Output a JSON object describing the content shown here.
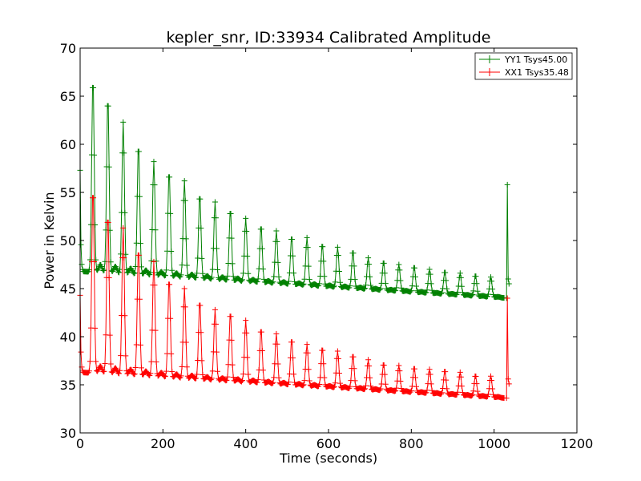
{
  "chart_data": {
    "type": "line",
    "title": "kepler_snr, ID:33934 Calibrated Amplitude",
    "xlabel": "Time (seconds)",
    "ylabel": "Power in Kelvin",
    "xlim": [
      0,
      1200
    ],
    "ylim": [
      30,
      70
    ],
    "xticks": [
      0,
      200,
      400,
      600,
      800,
      1000,
      1200
    ],
    "yticks": [
      30,
      35,
      40,
      45,
      50,
      55,
      60,
      65,
      70
    ],
    "grid": false,
    "legend_position": "top-right",
    "marker": "+",
    "sample_spacing_seconds": 2,
    "series": [
      {
        "name": "YY1 Tsys45.00",
        "color": "#008000",
        "start_value": 57.3,
        "end_value": 55.8,
        "x_range": [
          0,
          1035
        ],
        "baseline_start": 46.8,
        "baseline_end": 44.0,
        "peaks": [
          {
            "x": 31,
            "y": 67.0
          },
          {
            "x": 67,
            "y": 65.0
          },
          {
            "x": 104,
            "y": 62.3
          },
          {
            "x": 141,
            "y": 60.0
          },
          {
            "x": 178,
            "y": 58.2
          },
          {
            "x": 215,
            "y": 57.2
          },
          {
            "x": 252,
            "y": 56.2
          },
          {
            "x": 289,
            "y": 54.8
          },
          {
            "x": 326,
            "y": 54.0
          },
          {
            "x": 363,
            "y": 53.2
          },
          {
            "x": 400,
            "y": 52.3
          },
          {
            "x": 437,
            "y": 51.5
          },
          {
            "x": 474,
            "y": 51.0
          },
          {
            "x": 511,
            "y": 50.4
          },
          {
            "x": 548,
            "y": 50.3
          },
          {
            "x": 585,
            "y": 49.6
          },
          {
            "x": 622,
            "y": 49.3
          },
          {
            "x": 659,
            "y": 48.9
          },
          {
            "x": 696,
            "y": 48.2
          },
          {
            "x": 733,
            "y": 47.8
          },
          {
            "x": 770,
            "y": 47.5
          },
          {
            "x": 807,
            "y": 47.3
          },
          {
            "x": 844,
            "y": 47.0
          },
          {
            "x": 881,
            "y": 46.8
          },
          {
            "x": 918,
            "y": 46.6
          },
          {
            "x": 955,
            "y": 46.4
          },
          {
            "x": 992,
            "y": 46.2
          }
        ]
      },
      {
        "name": "XX1 Tsys35.48",
        "color": "#ff0000",
        "start_value": 44.3,
        "end_value": 44.0,
        "x_range": [
          0,
          1035
        ],
        "baseline_start": 36.3,
        "baseline_end": 33.6,
        "peaks": [
          {
            "x": 31,
            "y": 55.5
          },
          {
            "x": 67,
            "y": 52.8
          },
          {
            "x": 104,
            "y": 51.3
          },
          {
            "x": 141,
            "y": 49.2
          },
          {
            "x": 178,
            "y": 47.8
          },
          {
            "x": 215,
            "y": 46.0
          },
          {
            "x": 252,
            "y": 45.0
          },
          {
            "x": 289,
            "y": 43.7
          },
          {
            "x": 326,
            "y": 42.8
          },
          {
            "x": 363,
            "y": 42.5
          },
          {
            "x": 400,
            "y": 41.7
          },
          {
            "x": 437,
            "y": 40.8
          },
          {
            "x": 474,
            "y": 40.3
          },
          {
            "x": 511,
            "y": 39.7
          },
          {
            "x": 548,
            "y": 39.2
          },
          {
            "x": 585,
            "y": 38.8
          },
          {
            "x": 622,
            "y": 38.5
          },
          {
            "x": 659,
            "y": 38.1
          },
          {
            "x": 696,
            "y": 37.6
          },
          {
            "x": 733,
            "y": 37.2
          },
          {
            "x": 770,
            "y": 37.0
          },
          {
            "x": 807,
            "y": 36.8
          },
          {
            "x": 844,
            "y": 36.6
          },
          {
            "x": 881,
            "y": 36.5
          },
          {
            "x": 918,
            "y": 36.3
          },
          {
            "x": 955,
            "y": 36.0
          },
          {
            "x": 992,
            "y": 35.9
          }
        ]
      }
    ]
  }
}
